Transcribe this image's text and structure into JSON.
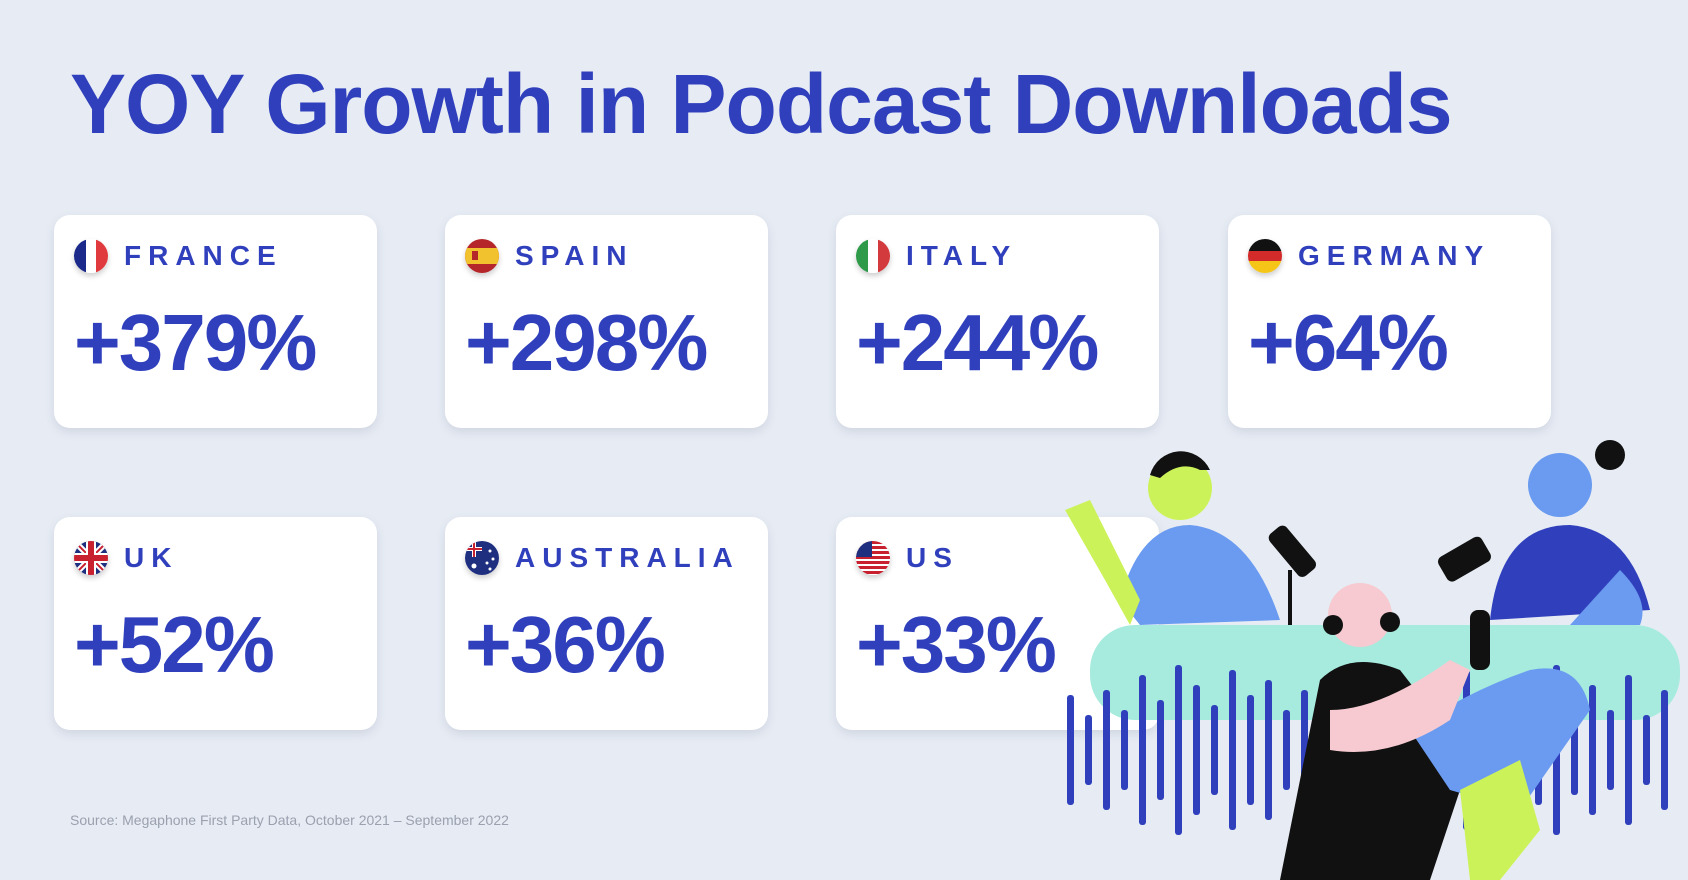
{
  "title": "YOY Growth in Podcast Downloads",
  "cards": [
    {
      "country": "FRANCE",
      "value": "+379%",
      "flag": "france-flag-icon"
    },
    {
      "country": "SPAIN",
      "value": "+298%",
      "flag": "spain-flag-icon"
    },
    {
      "country": "ITALY",
      "value": "+244%",
      "flag": "italy-flag-icon"
    },
    {
      "country": "GERMANY",
      "value": "+64%",
      "flag": "germany-flag-icon"
    },
    {
      "country": "UK",
      "value": "+52%",
      "flag": "uk-flag-icon"
    },
    {
      "country": "AUSTRALIA",
      "value": "+36%",
      "flag": "australia-flag-icon"
    },
    {
      "country": "US",
      "value": "+33%",
      "flag": "us-flag-icon"
    }
  ],
  "source": "Source: Megaphone First Party Data, October 2021 – September 2022",
  "colors": {
    "accent": "#3040bd",
    "background": "#e7ecf4"
  }
}
